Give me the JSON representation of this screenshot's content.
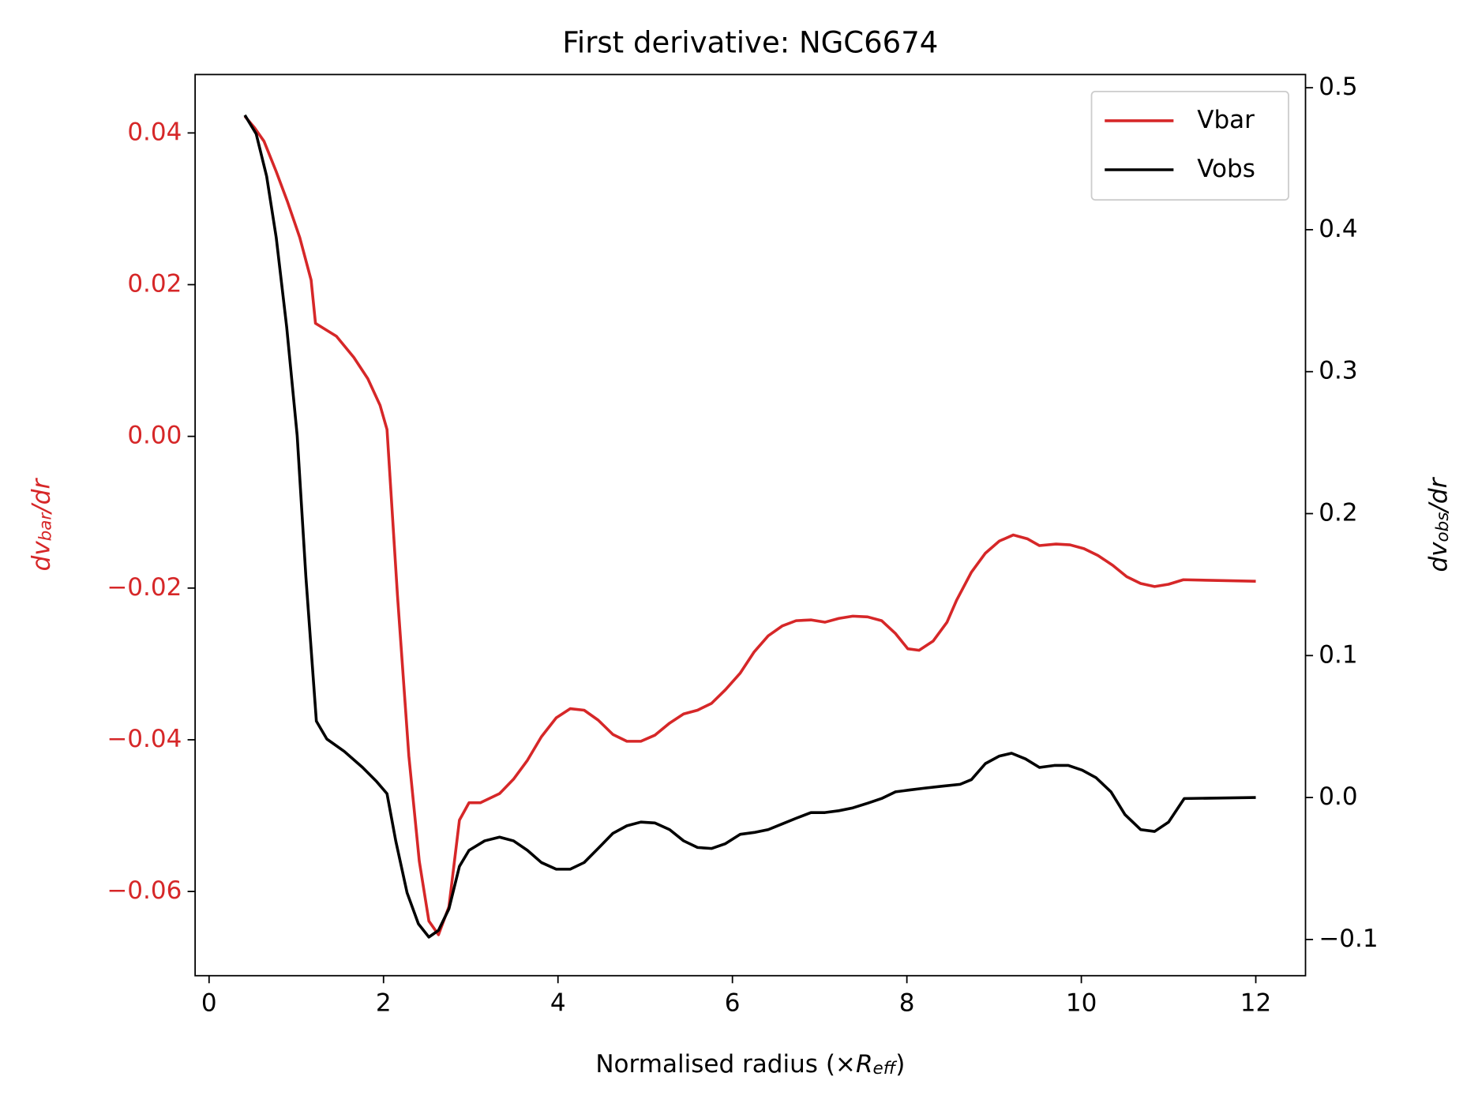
{
  "chart_data": {
    "type": "line",
    "title": "First derivative: NGC6674",
    "xlabel": [
      "Normalised radius (×",
      "R",
      "eff",
      ")"
    ],
    "ylabel": [
      "dv",
      "bar",
      "/dr"
    ],
    "y2label": [
      "dv",
      "obs",
      "/dr"
    ],
    "xlim": [
      -0.16,
      12.57
    ],
    "xticks": [
      0,
      2,
      4,
      6,
      8,
      10,
      12
    ],
    "ylim": [
      -0.0711,
      0.0477
    ],
    "yticks": [
      {
        "value": 0.04,
        "label": "0.04"
      },
      {
        "value": 0.02,
        "label": "0.02"
      },
      {
        "value": 0,
        "label": "0.00"
      },
      {
        "value": -0.02,
        "label": "−0.02"
      },
      {
        "value": -0.04,
        "label": "−0.04"
      },
      {
        "value": -0.06,
        "label": "−0.06"
      }
    ],
    "y2lim": [
      -0.1255,
      0.5093
    ],
    "y2ticks": [
      0.5,
      0.4,
      0.3,
      0.2,
      0.1,
      {
        "value": 0,
        "label": "0.0"
      },
      {
        "value": -0.1,
        "label": "−0.1"
      }
    ],
    "left_axis_color": "#d62728",
    "legend": "upper right",
    "series": [
      {
        "name": "Vbar",
        "color": "#d62728",
        "axis": "y",
        "x": [
          0.41,
          0.52,
          0.63,
          0.77,
          0.9,
          1.04,
          1.17,
          1.22,
          1.46,
          1.66,
          1.82,
          1.96,
          2.04,
          2.16,
          2.29,
          2.41,
          2.52,
          2.63,
          2.75,
          2.87,
          2.98,
          3.11,
          3.33,
          3.49,
          3.65,
          3.81,
          3.98,
          4.14,
          4.3,
          4.46,
          4.63,
          4.79,
          4.95,
          5.11,
          5.28,
          5.44,
          5.6,
          5.76,
          5.92,
          6.09,
          6.25,
          6.41,
          6.57,
          6.73,
          6.9,
          7.06,
          7.22,
          7.38,
          7.55,
          7.71,
          7.87,
          8.01,
          8.14,
          8.3,
          8.46,
          8.57,
          8.74,
          8.9,
          9.06,
          9.22,
          9.38,
          9.52,
          9.71,
          9.87,
          10.03,
          10.19,
          10.36,
          10.52,
          10.68,
          10.84,
          11.0,
          11.17,
          12.0
        ],
        "values": [
          0.0422,
          0.0407,
          0.0389,
          0.0349,
          0.0309,
          0.0262,
          0.0206,
          0.0149,
          0.0132,
          0.0104,
          0.0076,
          0.0041,
          0.0009,
          -0.021,
          -0.0421,
          -0.056,
          -0.0639,
          -0.0657,
          -0.062,
          -0.0506,
          -0.0483,
          -0.0483,
          -0.0471,
          -0.0452,
          -0.0427,
          -0.0396,
          -0.0371,
          -0.0359,
          -0.0361,
          -0.0374,
          -0.0393,
          -0.0402,
          -0.0402,
          -0.0394,
          -0.0378,
          -0.0366,
          -0.0361,
          -0.0352,
          -0.0334,
          -0.0312,
          -0.0284,
          -0.0263,
          -0.025,
          -0.0243,
          -0.0242,
          -0.0245,
          -0.024,
          -0.0237,
          -0.0238,
          -0.0243,
          -0.026,
          -0.028,
          -0.0282,
          -0.027,
          -0.0245,
          -0.0216,
          -0.0179,
          -0.0154,
          -0.0138,
          -0.013,
          -0.0135,
          -0.0144,
          -0.0142,
          -0.0143,
          -0.0148,
          -0.0157,
          -0.017,
          -0.0185,
          -0.0194,
          -0.0198,
          -0.0195,
          -0.0189,
          -0.0191
        ]
      },
      {
        "name": "Vobs",
        "color": "#000000",
        "axis": "y2",
        "x": [
          0.41,
          0.54,
          0.66,
          0.77,
          0.89,
          1.01,
          1.11,
          1.23,
          1.35,
          1.55,
          1.76,
          1.92,
          2.04,
          2.14,
          2.27,
          2.4,
          2.52,
          2.63,
          2.75,
          2.87,
          2.98,
          3.16,
          3.33,
          3.49,
          3.65,
          3.81,
          3.98,
          4.14,
          4.3,
          4.46,
          4.63,
          4.79,
          4.95,
          5.11,
          5.28,
          5.44,
          5.6,
          5.76,
          5.92,
          6.09,
          6.25,
          6.41,
          6.57,
          6.73,
          6.9,
          7.06,
          7.22,
          7.38,
          7.55,
          7.71,
          7.87,
          8.03,
          8.2,
          8.41,
          8.61,
          8.74,
          8.9,
          9.06,
          9.2,
          9.36,
          9.52,
          9.69,
          9.85,
          10.01,
          10.17,
          10.34,
          10.5,
          10.68,
          10.84,
          11.0,
          11.18,
          12.0
        ],
        "values": [
          0.4807,
          0.4675,
          0.4376,
          0.3944,
          0.3313,
          0.255,
          0.1554,
          0.0538,
          0.0412,
          0.0325,
          0.0212,
          0.0113,
          0.0027,
          -0.0305,
          -0.0671,
          -0.089,
          -0.0983,
          -0.0936,
          -0.0784,
          -0.0485,
          -0.0372,
          -0.0305,
          -0.0279,
          -0.0305,
          -0.0372,
          -0.0458,
          -0.0505,
          -0.0505,
          -0.0458,
          -0.0359,
          -0.0252,
          -0.0199,
          -0.0173,
          -0.0179,
          -0.0226,
          -0.0305,
          -0.0352,
          -0.0359,
          -0.0325,
          -0.0259,
          -0.0246,
          -0.0226,
          -0.0186,
          -0.0146,
          -0.0106,
          -0.0106,
          -0.0093,
          -0.0073,
          -0.004,
          -0.0007,
          0.004,
          0.0053,
          0.0066,
          0.008,
          0.0093,
          0.0126,
          0.0239,
          0.0292,
          0.0312,
          0.0272,
          0.0212,
          0.0226,
          0.0226,
          0.0193,
          0.0139,
          0.004,
          -0.012,
          -0.0226,
          -0.0239,
          -0.0173,
          -0.0007,
          0.0
        ]
      }
    ]
  }
}
